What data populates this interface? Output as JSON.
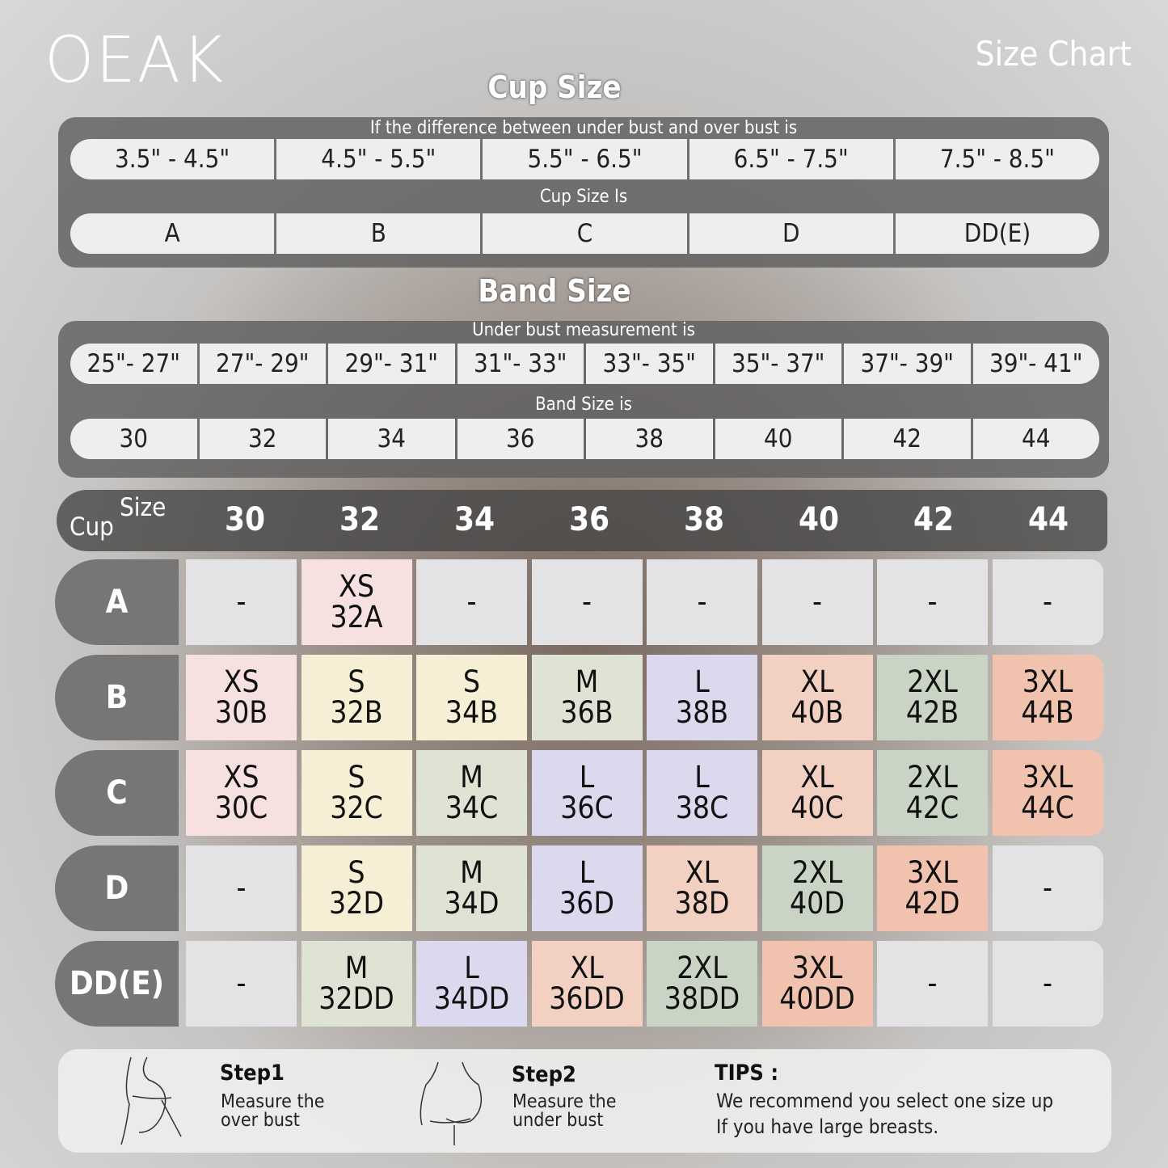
{
  "brand": "OEAK",
  "title": "Size Chart",
  "cup_section": {
    "title": "Cup Size",
    "caption1": "If the  difference between under bust and over bust is",
    "ranges": [
      "3.5\" -  4.5\"",
      "4.5\" -  5.5\"",
      "5.5\" -  6.5\"",
      "6.5\" -  7.5\"",
      "7.5\" -  8.5\""
    ],
    "caption2": "Cup Size Is",
    "cups": [
      "A",
      "B",
      "C",
      "D",
      "DD(E)"
    ]
  },
  "band_section": {
    "title": "Band Size",
    "caption1": "Under bust measurement is",
    "ranges": [
      "25\"- 27\"",
      "27\"- 29\"",
      "29\"- 31\"",
      "31\"- 33\"",
      "33\"- 35\"",
      "35\"- 37\"",
      "37\"- 39\"",
      "39\"- 41\""
    ],
    "caption2": "Band Size is",
    "bands": [
      "30",
      "32",
      "34",
      "36",
      "38",
      "40",
      "42",
      "44"
    ]
  },
  "table": {
    "corner_size": "Size",
    "corner_cup": "Cup",
    "columns": [
      "30",
      "32",
      "34",
      "36",
      "38",
      "40",
      "42",
      "44"
    ],
    "palette": {
      "none": "#e3e3e5",
      "xs": "#f6e1e0",
      "s": "#f6efd5",
      "m": "#dfe3d4",
      "l": "#dcd8ee",
      "xl": "#f2d0c2",
      "2xl": "#c9d4c5",
      "3xl": "#f1c2ae"
    },
    "rows": [
      {
        "cup": "A",
        "cells": [
          [
            "-",
            ""
          ],
          [
            "XS",
            "32A"
          ],
          [
            "-",
            ""
          ],
          [
            "-",
            ""
          ],
          [
            "-",
            ""
          ],
          [
            "-",
            ""
          ],
          [
            "-",
            ""
          ],
          [
            "-",
            ""
          ]
        ]
      },
      {
        "cup": "B",
        "cells": [
          [
            "XS",
            "30B"
          ],
          [
            "S",
            "32B"
          ],
          [
            "S",
            "34B"
          ],
          [
            "M",
            "36B"
          ],
          [
            "L",
            "38B"
          ],
          [
            "XL",
            "40B"
          ],
          [
            "2XL",
            "42B"
          ],
          [
            "3XL",
            "44B"
          ]
        ]
      },
      {
        "cup": "C",
        "cells": [
          [
            "XS",
            "30C"
          ],
          [
            "S",
            "32C"
          ],
          [
            "M",
            "34C"
          ],
          [
            "L",
            "36C"
          ],
          [
            "L",
            "38C"
          ],
          [
            "XL",
            "40C"
          ],
          [
            "2XL",
            "42C"
          ],
          [
            "3XL",
            "44C"
          ]
        ]
      },
      {
        "cup": "D",
        "cells": [
          [
            "-",
            ""
          ],
          [
            "S",
            "32D"
          ],
          [
            "M",
            "34D"
          ],
          [
            "L",
            "36D"
          ],
          [
            "XL",
            "38D"
          ],
          [
            "2XL",
            "40D"
          ],
          [
            "3XL",
            "42D"
          ],
          [
            "-",
            ""
          ]
        ]
      },
      {
        "cup": "DD(E)",
        "cells": [
          [
            "-",
            ""
          ],
          [
            "M",
            "32DD"
          ],
          [
            "L",
            "34DD"
          ],
          [
            "XL",
            "36DD"
          ],
          [
            "2XL",
            "38DD"
          ],
          [
            "3XL",
            "40DD"
          ],
          [
            "-",
            ""
          ],
          [
            "-",
            ""
          ]
        ]
      }
    ]
  },
  "steps": {
    "step1_title": "Step1",
    "step1_desc1": "Measure the",
    "step1_desc2": "over bust",
    "step2_title": "Step2",
    "step2_desc1": "Measure the",
    "step2_desc2": "under bust",
    "tips_title": "TIPS :",
    "tips1": "We recommend you select one size up",
    "tips2": "If you have large breasts."
  }
}
